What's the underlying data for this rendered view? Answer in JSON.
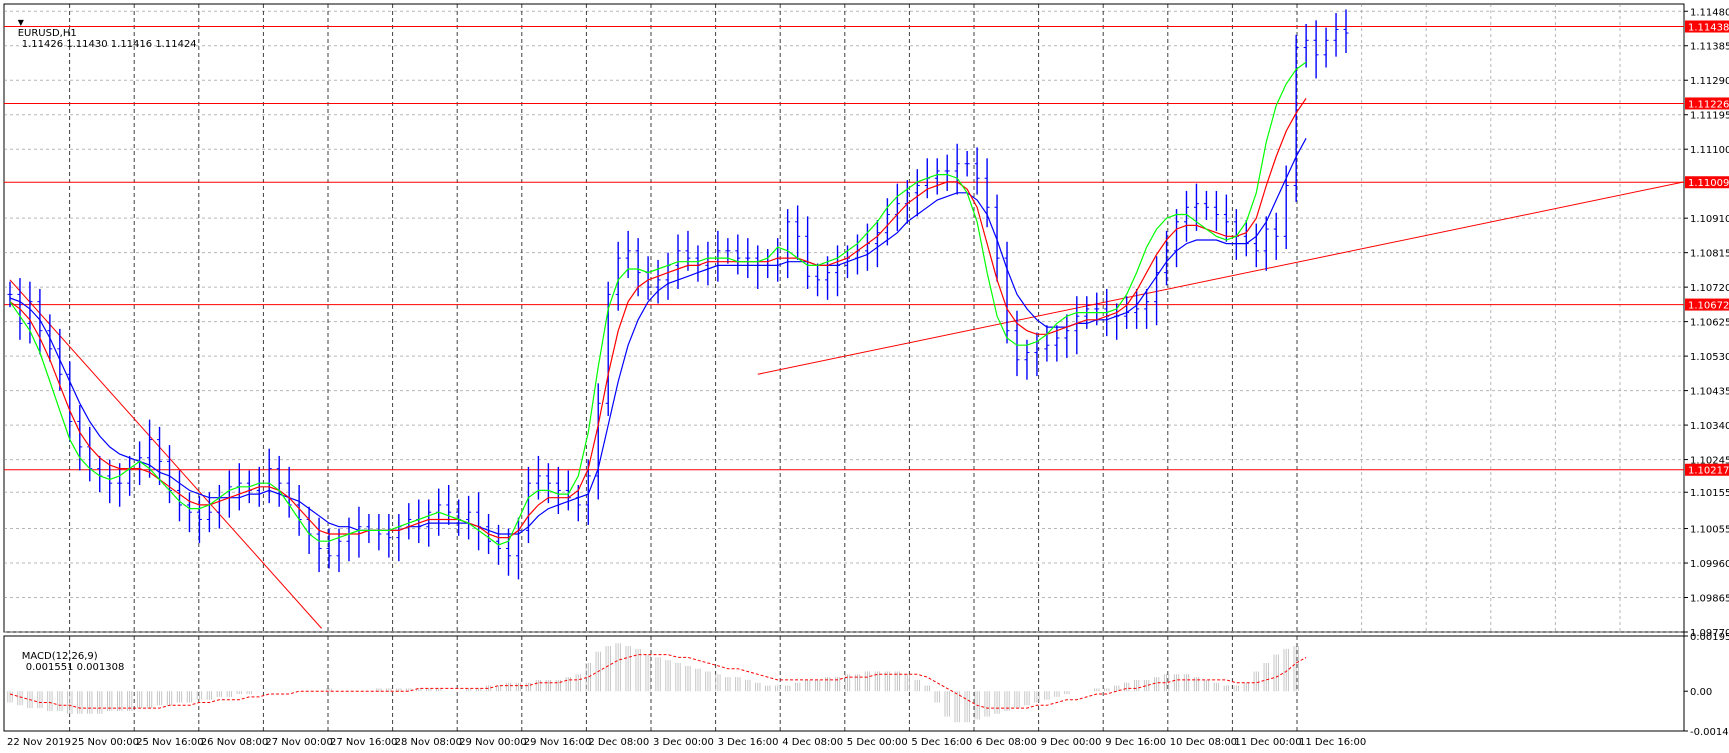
{
  "window": {
    "symbol_label": "EURUSD,H1",
    "ohlc_text": "1.11426 1.11430 1.11416 1.11424",
    "menu_glyph": "▼"
  },
  "indicator": {
    "label": "MACD(12,26,9)",
    "values_text": "0.001551 0.001308"
  },
  "colors": {
    "background": "#ffffff",
    "candles": "#0000ff",
    "hline": "#ff0000",
    "ma_fast": "#00ff00",
    "ma_mid": "#ff0000",
    "ma_slow": "#0000ff",
    "grid": "#888888",
    "macd_hist": "#c0c0c0",
    "macd_signal": "#ff0000"
  },
  "chart_data": [
    {
      "type": "candlestick",
      "title": "EURUSD,H1",
      "price_axis": {
        "ticks": [
          "1.11480",
          "1.11385",
          "1.11290",
          "1.11195",
          "1.11100",
          "1.10910",
          "1.10815",
          "1.10720",
          "1.10625",
          "1.10530",
          "1.10435",
          "1.10340",
          "1.10245",
          "1.10155",
          "1.10055",
          "1.09960",
          "1.09865",
          "1.09770"
        ],
        "range": [
          1.0977,
          1.115
        ]
      },
      "time_axis": {
        "labels": [
          "22 Nov 2019",
          "25 Nov 00:00",
          "25 Nov 16:00",
          "26 Nov 08:00",
          "27 Nov 00:00",
          "27 Nov 16:00",
          "28 Nov 08:00",
          "29 Nov 00:00",
          "29 Nov 16:00",
          "2 Dec 08:00",
          "3 Dec 00:00",
          "3 Dec 16:00",
          "4 Dec 08:00",
          "5 Dec 00:00",
          "5 Dec 16:00",
          "6 Dec 08:00",
          "9 Dec 00:00",
          "9 Dec 16:00",
          "10 Dec 08:00",
          "11 Dec 00:00",
          "11 Dec 16:00"
        ]
      },
      "horizontal_levels": [
        {
          "label": "1.11438",
          "value": 1.11438
        },
        {
          "label": "1.11226",
          "value": 1.11226
        },
        {
          "label": "1.11009",
          "value": 1.11009
        },
        {
          "label": "1.10672",
          "value": 1.10672
        },
        {
          "label": "1.10217",
          "value": 1.10217
        }
      ],
      "trendlines": [
        {
          "from": {
            "bar": 0,
            "price": 1.1074
          },
          "to": {
            "bar": 125,
            "price": 1.0978
          }
        },
        {
          "from": {
            "bar": 300,
            "price": 1.1048
          },
          "to": {
            "bar": 510,
            "price": 1.1101
          }
        }
      ],
      "close_series": [
        1.107,
        1.1062,
        1.1068,
        1.106,
        1.1055,
        1.1048,
        1.1035,
        1.1028,
        1.1022,
        1.102,
        1.1018,
        1.1018,
        1.1022,
        1.1025,
        1.103,
        1.1024,
        1.1016,
        1.1012,
        1.101,
        1.1008,
        1.101,
        1.1014,
        1.1017,
        1.1018,
        1.1016,
        1.1018,
        1.1022,
        1.1018,
        1.1012,
        1.1008,
        1.1004,
        1.1,
        1.0998,
        1.1002,
        1.1004,
        1.1006,
        1.1005,
        1.1004,
        1.1003,
        1.1006,
        1.1008,
        1.1006,
        1.101,
        1.1012,
        1.101,
        1.1008,
        1.101,
        1.1006,
        1.1002,
        1.1,
        1.0998,
        1.1005,
        1.1018,
        1.102,
        1.1018,
        1.1016,
        1.1014,
        1.1012,
        1.102,
        1.104,
        1.107,
        1.108,
        1.1082,
        1.1076,
        1.1072,
        1.1074,
        1.1078,
        1.1082,
        1.108,
        1.1078,
        1.108,
        1.1082,
        1.1082,
        1.108,
        1.108,
        1.1078,
        1.1078,
        1.108,
        1.109,
        1.1086,
        1.1075,
        1.1074,
        1.1076,
        1.1078,
        1.108,
        1.1082,
        1.1084,
        1.1087,
        1.1092,
        1.1095,
        1.1098,
        1.11,
        1.1102,
        1.1104,
        1.1104,
        1.1106,
        1.1106,
        1.1102,
        1.1094,
        1.108,
        1.106,
        1.1052,
        1.1054,
        1.1055,
        1.1056,
        1.1058,
        1.106,
        1.1064,
        1.1066,
        1.1066,
        1.1064,
        1.1064,
        1.1065,
        1.1066,
        1.1068,
        1.1076,
        1.1082,
        1.109,
        1.1094,
        1.1095,
        1.1094,
        1.1092,
        1.109,
        1.1086,
        1.1084,
        1.1082,
        1.1088,
        1.1086,
        1.11,
        1.1138,
        1.114,
        1.1136,
        1.114,
        1.1143,
        1.1142
      ],
      "ma_fast": [
        1.1068,
        1.1064,
        1.106,
        1.1054,
        1.1046,
        1.1038,
        1.103,
        1.1025,
        1.1022,
        1.102,
        1.1019,
        1.102,
        1.1022,
        1.1024,
        1.1022,
        1.1019,
        1.1016,
        1.1013,
        1.1011,
        1.1011,
        1.1012,
        1.1014,
        1.1016,
        1.1017,
        1.1017,
        1.1018,
        1.1018,
        1.1016,
        1.1012,
        1.1008,
        1.1004,
        1.1002,
        1.1002,
        1.1003,
        1.1004,
        1.1005,
        1.1005,
        1.1005,
        1.1005,
        1.1006,
        1.1007,
        1.1008,
        1.1009,
        1.101,
        1.1009,
        1.1008,
        1.1007,
        1.1005,
        1.1003,
        1.1001,
        1.1002,
        1.1008,
        1.1014,
        1.1016,
        1.1016,
        1.1015,
        1.1015,
        1.102,
        1.1032,
        1.105,
        1.1066,
        1.1074,
        1.1077,
        1.1077,
        1.1076,
        1.1077,
        1.1078,
        1.1079,
        1.1079,
        1.1079,
        1.108,
        1.108,
        1.108,
        1.1079,
        1.1079,
        1.1079,
        1.108,
        1.1083,
        1.1082,
        1.108,
        1.1078,
        1.1078,
        1.1079,
        1.108,
        1.1082,
        1.1084,
        1.1087,
        1.109,
        1.1094,
        1.1097,
        1.1099,
        1.1101,
        1.1102,
        1.1103,
        1.1103,
        1.1102,
        1.1098,
        1.109,
        1.1076,
        1.1064,
        1.1058,
        1.1056,
        1.1056,
        1.1057,
        1.1059,
        1.1062,
        1.1064,
        1.1065,
        1.1065,
        1.1065,
        1.1065,
        1.1066,
        1.107,
        1.1076,
        1.1083,
        1.1088,
        1.1091,
        1.1092,
        1.1092,
        1.109,
        1.1088,
        1.1086,
        1.1085,
        1.1086,
        1.109,
        1.1098,
        1.1112,
        1.1122,
        1.1128,
        1.1132,
        1.1134
      ],
      "ma_mid": [
        1.1068,
        1.1066,
        1.1063,
        1.1058,
        1.1052,
        1.1045,
        1.1038,
        1.1032,
        1.1028,
        1.1025,
        1.1023,
        1.1022,
        1.1022,
        1.1022,
        1.1021,
        1.1019,
        1.1017,
        1.1015,
        1.1013,
        1.1012,
        1.1012,
        1.1013,
        1.1014,
        1.1015,
        1.1016,
        1.1017,
        1.1017,
        1.1016,
        1.1014,
        1.1011,
        1.1008,
        1.1005,
        1.1004,
        1.1004,
        1.1004,
        1.1004,
        1.1005,
        1.1005,
        1.1005,
        1.1005,
        1.1006,
        1.1007,
        1.1008,
        1.1008,
        1.1008,
        1.1008,
        1.1007,
        1.1006,
        1.1004,
        1.1003,
        1.1003,
        1.1005,
        1.1009,
        1.1012,
        1.1014,
        1.1014,
        1.1014,
        1.1016,
        1.1022,
        1.1034,
        1.1048,
        1.106,
        1.1068,
        1.1072,
        1.1074,
        1.1075,
        1.1076,
        1.1077,
        1.1078,
        1.1078,
        1.1079,
        1.1079,
        1.1079,
        1.1079,
        1.1079,
        1.1079,
        1.1079,
        1.108,
        1.108,
        1.108,
        1.1079,
        1.1078,
        1.1078,
        1.1079,
        1.108,
        1.1082,
        1.1084,
        1.1086,
        1.1089,
        1.1092,
        1.1095,
        1.1097,
        1.1099,
        1.11,
        1.1101,
        1.1101,
        1.1099,
        1.1094,
        1.1084,
        1.1074,
        1.1066,
        1.1062,
        1.106,
        1.1059,
        1.1059,
        1.106,
        1.1061,
        1.1062,
        1.1063,
        1.1063,
        1.1064,
        1.1065,
        1.1067,
        1.1071,
        1.1076,
        1.1081,
        1.1085,
        1.1088,
        1.1089,
        1.1089,
        1.1088,
        1.1087,
        1.1086,
        1.1086,
        1.1087,
        1.1091,
        1.11,
        1.1108,
        1.1115,
        1.112,
        1.1124
      ],
      "ma_slow": [
        1.1069,
        1.1068,
        1.1066,
        1.1063,
        1.1058,
        1.1052,
        1.1046,
        1.104,
        1.1035,
        1.1031,
        1.1028,
        1.1026,
        1.1025,
        1.1024,
        1.1023,
        1.1021,
        1.102,
        1.1018,
        1.1016,
        1.1015,
        1.1014,
        1.1014,
        1.1014,
        1.1014,
        1.1015,
        1.1015,
        1.1016,
        1.1015,
        1.1014,
        1.1013,
        1.1011,
        1.1009,
        1.1007,
        1.1006,
        1.1006,
        1.1005,
        1.1005,
        1.1005,
        1.1005,
        1.1005,
        1.1006,
        1.1006,
        1.1007,
        1.1007,
        1.1007,
        1.1007,
        1.1007,
        1.1006,
        1.1005,
        1.1004,
        1.1004,
        1.1004,
        1.1006,
        1.1009,
        1.1011,
        1.1012,
        1.1013,
        1.1014,
        1.1015,
        1.1022,
        1.1034,
        1.1046,
        1.1056,
        1.1063,
        1.1068,
        1.1071,
        1.1073,
        1.1074,
        1.1075,
        1.1076,
        1.1077,
        1.1078,
        1.1078,
        1.1078,
        1.1078,
        1.1078,
        1.1078,
        1.1078,
        1.1079,
        1.1079,
        1.1079,
        1.1078,
        1.1078,
        1.1078,
        1.1079,
        1.108,
        1.1081,
        1.1083,
        1.1085,
        1.1087,
        1.109,
        1.1092,
        1.1094,
        1.1096,
        1.1097,
        1.1098,
        1.1098,
        1.1096,
        1.1092,
        1.1085,
        1.1077,
        1.107,
        1.1066,
        1.1063,
        1.1061,
        1.1061,
        1.1061,
        1.1062,
        1.1062,
        1.1063,
        1.1063,
        1.1064,
        1.1065,
        1.1067,
        1.1071,
        1.1075,
        1.1079,
        1.1082,
        1.1084,
        1.1085,
        1.1085,
        1.1085,
        1.1084,
        1.1084,
        1.1084,
        1.1086,
        1.109,
        1.1096,
        1.1102,
        1.1108,
        1.1113
      ]
    },
    {
      "type": "bar",
      "title": "MACD(12,26,9)",
      "axis_ticks": [
        "0.001958",
        "0.00",
        "-0.001411"
      ],
      "range": [
        -0.001411,
        0.001958
      ],
      "histogram": [
        -0.0004,
        -0.0005,
        -0.0006,
        -0.0006,
        -0.0007,
        -0.0007,
        -0.0008,
        -0.0008,
        -0.0008,
        -0.0008,
        -0.0007,
        -0.0007,
        -0.0007,
        -0.0006,
        -0.0006,
        -0.0005,
        -0.0005,
        -0.0004,
        -0.0004,
        -0.0003,
        -0.0003,
        -0.0002,
        -0.0002,
        -0.0001,
        -0.0001,
        0.0,
        0.0,
        0.0,
        0.0,
        0.0,
        0.0,
        0.0,
        0.0001,
        0.0,
        0.0,
        0.0,
        0.0,
        0.0001,
        0.0001,
        0.0001,
        0.0001,
        0.0001,
        0.0001,
        0.0001,
        0.0,
        0.0,
        0.0001,
        0.0001,
        0.0002,
        0.0002,
        0.0003,
        0.0003,
        0.0003,
        0.0004,
        0.0004,
        0.0004,
        0.0005,
        0.0006,
        0.001,
        0.0014,
        0.0016,
        0.0017,
        0.0016,
        0.0015,
        0.0013,
        0.0012,
        0.0011,
        0.001,
        0.0009,
        0.0008,
        0.0007,
        0.0006,
        0.0005,
        0.0005,
        0.0004,
        0.0003,
        0.0002,
        0.0002,
        0.0002,
        0.0003,
        0.0004,
        0.0004,
        0.0005,
        0.0005,
        0.0006,
        0.0006,
        0.0007,
        0.0007,
        0.0007,
        0.0007,
        0.0006,
        0.0004,
        0.0002,
        -0.0004,
        -0.0009,
        -0.0011,
        -0.0011,
        -0.001,
        -0.0009,
        -0.0008,
        -0.0007,
        -0.0006,
        -0.0005,
        -0.0004,
        -0.0003,
        -0.0002,
        -0.0001,
        0.0,
        0.0,
        0.0001,
        0.0001,
        0.0002,
        0.0003,
        0.0004,
        0.0004,
        0.0005,
        0.0006,
        0.0006,
        0.0006,
        0.0005,
        0.0004,
        0.0003,
        0.0002,
        0.0002,
        0.0003,
        0.0007,
        0.001,
        0.0013,
        0.0015,
        0.0016
      ],
      "signal": [
        -0.0001,
        -0.0002,
        -0.0003,
        -0.0004,
        -0.0004,
        -0.0005,
        -0.0005,
        -0.0006,
        -0.0006,
        -0.0006,
        -0.0006,
        -0.0006,
        -0.0006,
        -0.0006,
        -0.0006,
        -0.0006,
        -0.0005,
        -0.0005,
        -0.0005,
        -0.0004,
        -0.0004,
        -0.0003,
        -0.0003,
        -0.0003,
        -0.0002,
        -0.0002,
        -0.0001,
        -0.0001,
        -0.0001,
        0.0,
        0.0,
        0.0,
        0.0,
        0.0,
        0.0,
        0.0,
        0.0,
        0.0,
        0.0,
        0.0,
        0.0,
        0.0001,
        0.0001,
        0.0001,
        0.0001,
        0.0001,
        0.0001,
        0.0001,
        0.0001,
        0.0002,
        0.0002,
        0.0002,
        0.0002,
        0.0003,
        0.0003,
        0.0003,
        0.0004,
        0.0004,
        0.0005,
        0.0007,
        0.0009,
        0.0011,
        0.0012,
        0.0013,
        0.0013,
        0.0013,
        0.0013,
        0.0012,
        0.0012,
        0.0011,
        0.001,
        0.0009,
        0.0008,
        0.0008,
        0.0007,
        0.0006,
        0.0005,
        0.0004,
        0.0004,
        0.0004,
        0.0004,
        0.0004,
        0.0004,
        0.0004,
        0.0005,
        0.0005,
        0.0005,
        0.0006,
        0.0006,
        0.0006,
        0.0006,
        0.0006,
        0.0005,
        0.0003,
        0.0001,
        -0.0001,
        -0.0003,
        -0.0005,
        -0.0006,
        -0.0006,
        -0.0006,
        -0.0006,
        -0.0006,
        -0.0005,
        -0.0005,
        -0.0004,
        -0.0003,
        -0.0003,
        -0.0002,
        -0.0001,
        -0.0001,
        0.0,
        0.0001,
        0.0001,
        0.0002,
        0.0003,
        0.0003,
        0.0004,
        0.0004,
        0.0004,
        0.0004,
        0.0004,
        0.0004,
        0.0003,
        0.0003,
        0.0003,
        0.0004,
        0.0005,
        0.0007,
        0.001,
        0.0012
      ]
    }
  ]
}
